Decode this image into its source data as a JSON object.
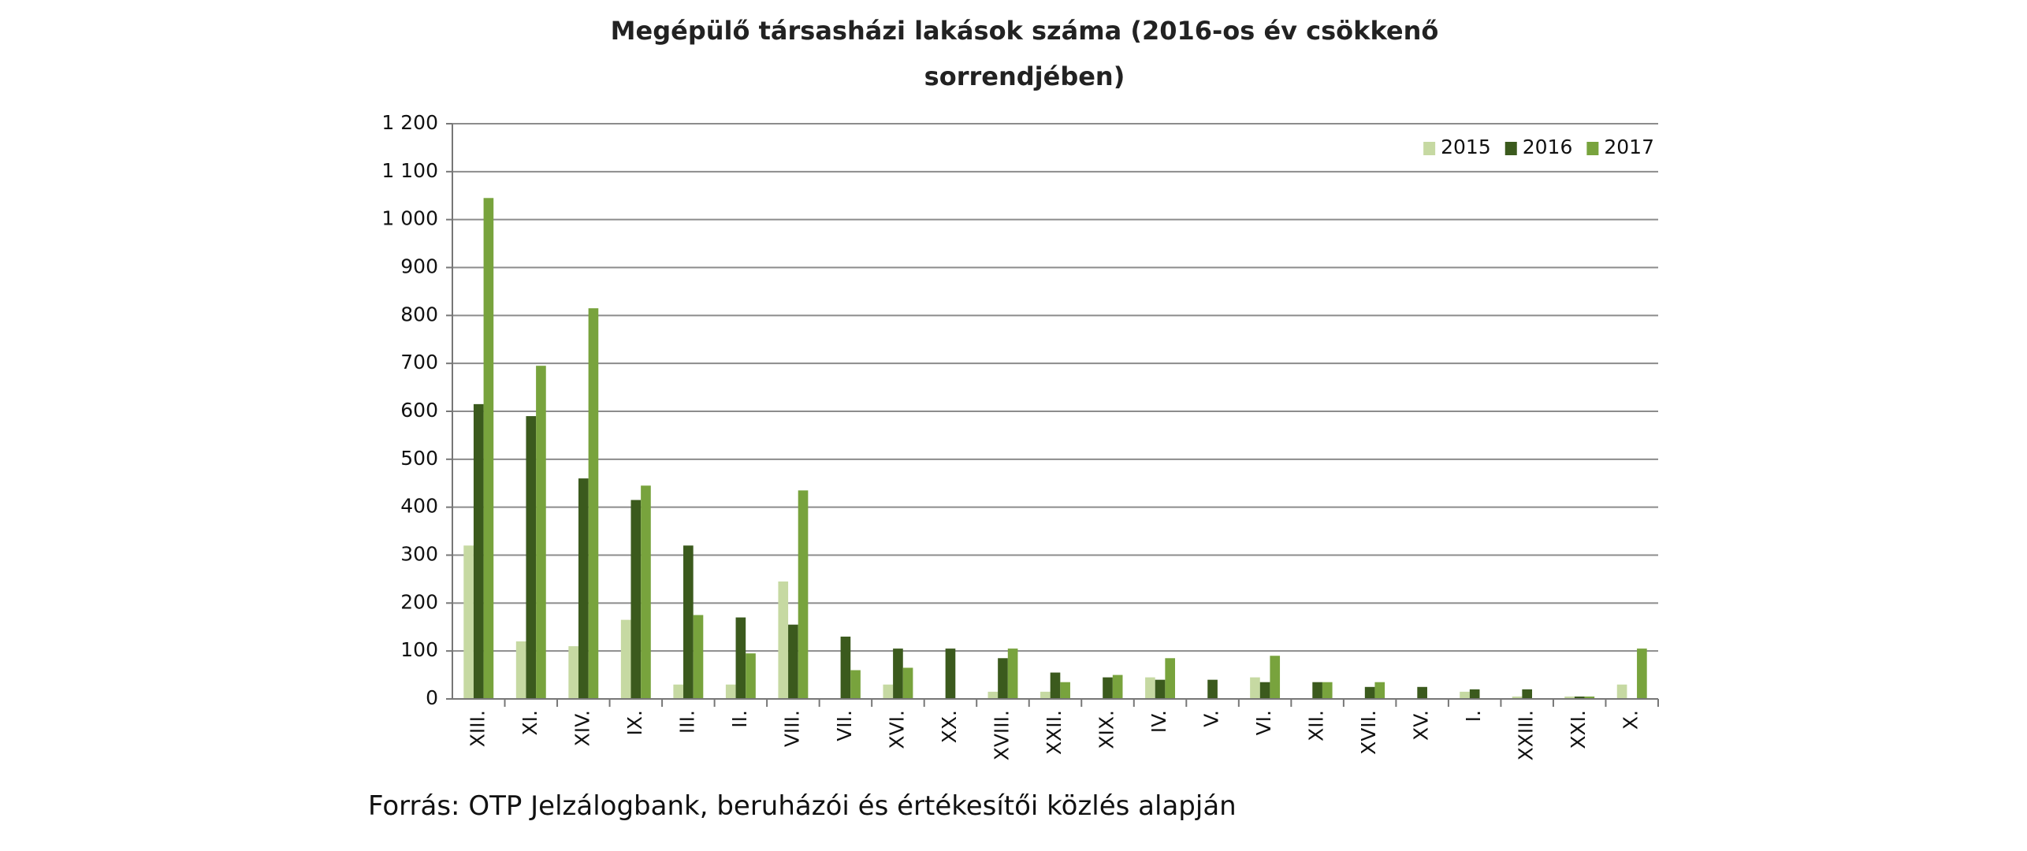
{
  "chart_data": {
    "type": "bar",
    "title": "Megépülő társasházi  lakások száma (2016-os év csökkenő sorrendjében)",
    "source": "Forrás: OTP Jelzálogbank, beruházói  és értékesítői  közlés alapján",
    "categories": [
      "XIII.",
      "XI.",
      "XIV.",
      "IX.",
      "III.",
      "II.",
      "VIII.",
      "VII.",
      "XVI.",
      "XX.",
      "XVIII.",
      "XXII.",
      "XIX.",
      "IV.",
      "V.",
      "VI.",
      "XII.",
      "XVII.",
      "XV.",
      "I.",
      "XXIII.",
      "XXI.",
      "X."
    ],
    "series": [
      {
        "name": "2015",
        "color": "#c6d9a2",
        "values": [
          320,
          120,
          110,
          165,
          30,
          30,
          245,
          0,
          30,
          0,
          15,
          15,
          0,
          45,
          0,
          45,
          0,
          0,
          0,
          15,
          5,
          5,
          30
        ]
      },
      {
        "name": "2016",
        "color": "#3b5a1d",
        "values": [
          615,
          590,
          460,
          415,
          320,
          170,
          155,
          130,
          105,
          105,
          85,
          55,
          45,
          40,
          40,
          35,
          35,
          25,
          25,
          20,
          20,
          5,
          0
        ]
      },
      {
        "name": "2017",
        "color": "#78a33d",
        "values": [
          1045,
          695,
          815,
          445,
          175,
          95,
          435,
          60,
          65,
          0,
          105,
          35,
          50,
          85,
          0,
          90,
          35,
          35,
          0,
          0,
          0,
          5,
          105
        ]
      }
    ],
    "ylim": [
      0,
      1200
    ],
    "yticks": [
      0,
      100,
      200,
      300,
      400,
      500,
      600,
      700,
      800,
      900,
      {
        "value": 1000,
        "label": "1 000"
      },
      {
        "value": 1100,
        "label": "1 100"
      },
      {
        "value": 1200,
        "label": "1 200"
      }
    ],
    "grid": true,
    "legend": "top-right"
  }
}
